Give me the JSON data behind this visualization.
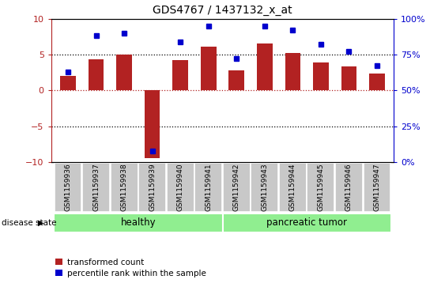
{
  "title": "GDS4767 / 1437132_x_at",
  "samples": [
    "GSM1159936",
    "GSM1159937",
    "GSM1159938",
    "GSM1159939",
    "GSM1159940",
    "GSM1159941",
    "GSM1159942",
    "GSM1159943",
    "GSM1159944",
    "GSM1159945",
    "GSM1159946",
    "GSM1159947"
  ],
  "bar_values": [
    2.0,
    4.3,
    5.0,
    -9.4,
    4.2,
    6.1,
    2.8,
    6.5,
    5.2,
    3.9,
    3.3,
    2.3
  ],
  "dot_values_pct": [
    63,
    88,
    90,
    8,
    84,
    95,
    72,
    95,
    92,
    82,
    77,
    67
  ],
  "bar_color": "#B22222",
  "dot_color": "#0000CD",
  "healthy_indices": [
    0,
    1,
    2,
    3,
    4,
    5
  ],
  "tumor_indices": [
    6,
    7,
    8,
    9,
    10,
    11
  ],
  "group_healthy_label": "healthy",
  "group_tumor_label": "pancreatic tumor",
  "group_color": "#90EE90",
  "disease_label": "disease state",
  "ylim_left": [
    -10,
    10
  ],
  "yticks_left": [
    -10,
    -5,
    0,
    5,
    10
  ],
  "yticks_right_pct": [
    0,
    25,
    50,
    75,
    100
  ],
  "ylabel_left_color": "#B22222",
  "ylabel_right_color": "#0000CD",
  "legend_items": [
    "transformed count",
    "percentile rank within the sample"
  ],
  "legend_colors": [
    "#B22222",
    "#0000CD"
  ],
  "bg_color": "white",
  "tick_area_color": "#C8C8C8",
  "title_fontsize": 10,
  "axis_fontsize": 8,
  "legend_fontsize": 7.5,
  "sample_fontsize": 6.5
}
